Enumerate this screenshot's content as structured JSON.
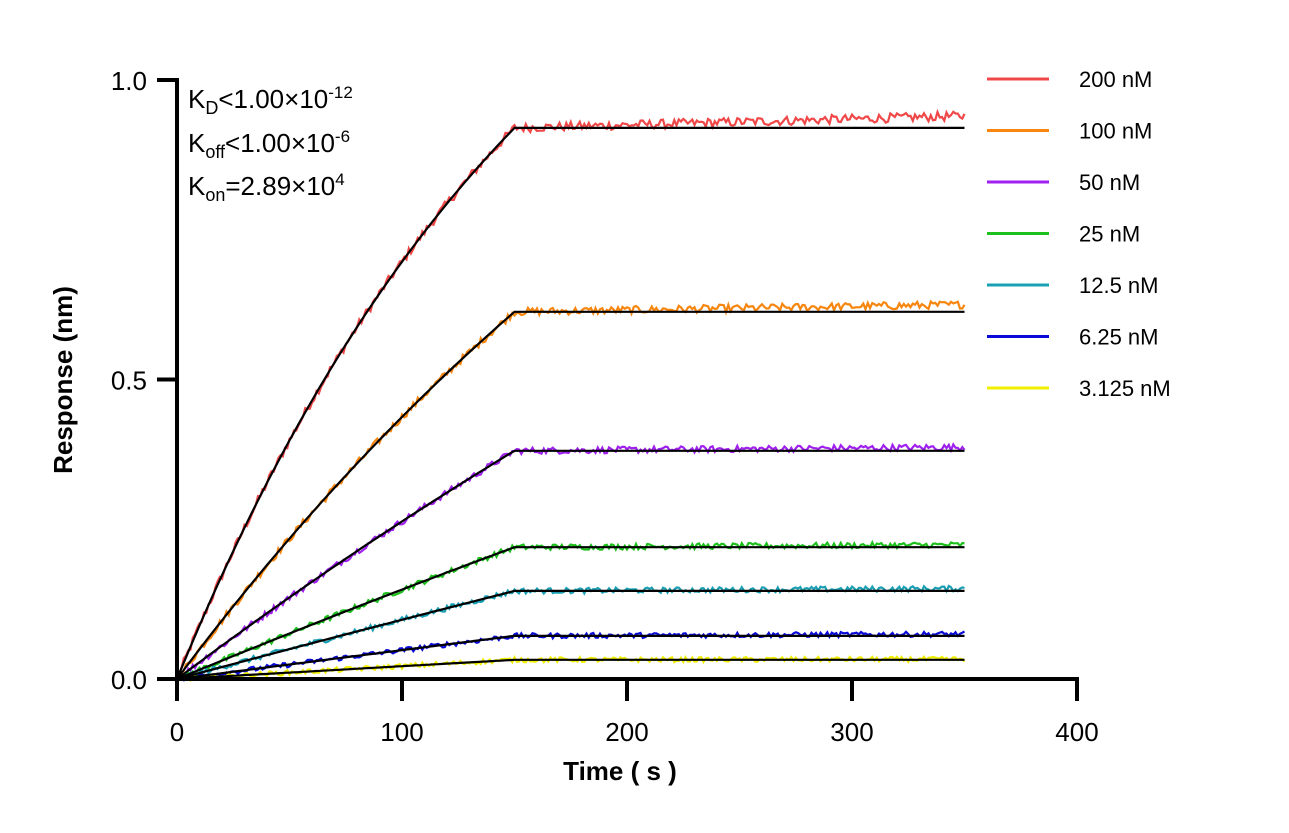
{
  "chart_data": {
    "type": "line",
    "title": "",
    "xlabel": "Time ( s )",
    "ylabel": "Response (nm)",
    "xlim": [
      0,
      400
    ],
    "ylim": [
      0,
      1.0
    ],
    "xticks": [
      "0",
      "100",
      "200",
      "300",
      "400"
    ],
    "yticks": [
      "0.0",
      "0.5",
      "1.0"
    ],
    "grid": false,
    "legend_position": "right",
    "association_end_s": 150,
    "dissociation_end_s": 350,
    "fit_line_color": "#000000",
    "annotation": {
      "kd": {
        "base": "K",
        "sub": "D",
        "text": "<1.00×10",
        "exp": "-12"
      },
      "koff": {
        "base": "K",
        "sub": "off",
        "text": "<1.00×10",
        "exp": "-6"
      },
      "kon": {
        "base": "K",
        "sub": "on",
        "text": "=2.89×10",
        "exp": "4"
      }
    },
    "kon_value": 28900,
    "series": [
      {
        "name": "200 nM",
        "conc_nM": 200,
        "color": "#f04848",
        "plateau": 0.92,
        "data_end": 0.94
      },
      {
        "name": "100 nM",
        "conc_nM": 100,
        "color": "#f7860f",
        "plateau": 0.613,
        "data_end": 0.625
      },
      {
        "name": "50 nM",
        "conc_nM": 50,
        "color": "#a020f0",
        "plateau": 0.381,
        "data_end": 0.387
      },
      {
        "name": "25 nM",
        "conc_nM": 25,
        "color": "#1ec01e",
        "plateau": 0.22,
        "data_end": 0.224
      },
      {
        "name": "12.5 nM",
        "conc_nM": 12.5,
        "color": "#1aa0b4",
        "plateau": 0.147,
        "data_end": 0.151
      },
      {
        "name": "6.25 nM",
        "conc_nM": 6.25,
        "color": "#0a0ad8",
        "plateau": 0.072,
        "data_end": 0.075
      },
      {
        "name": "3.125 nM",
        "conc_nM": 3.125,
        "color": "#f0f000",
        "plateau": 0.032,
        "data_end": 0.033
      }
    ]
  }
}
